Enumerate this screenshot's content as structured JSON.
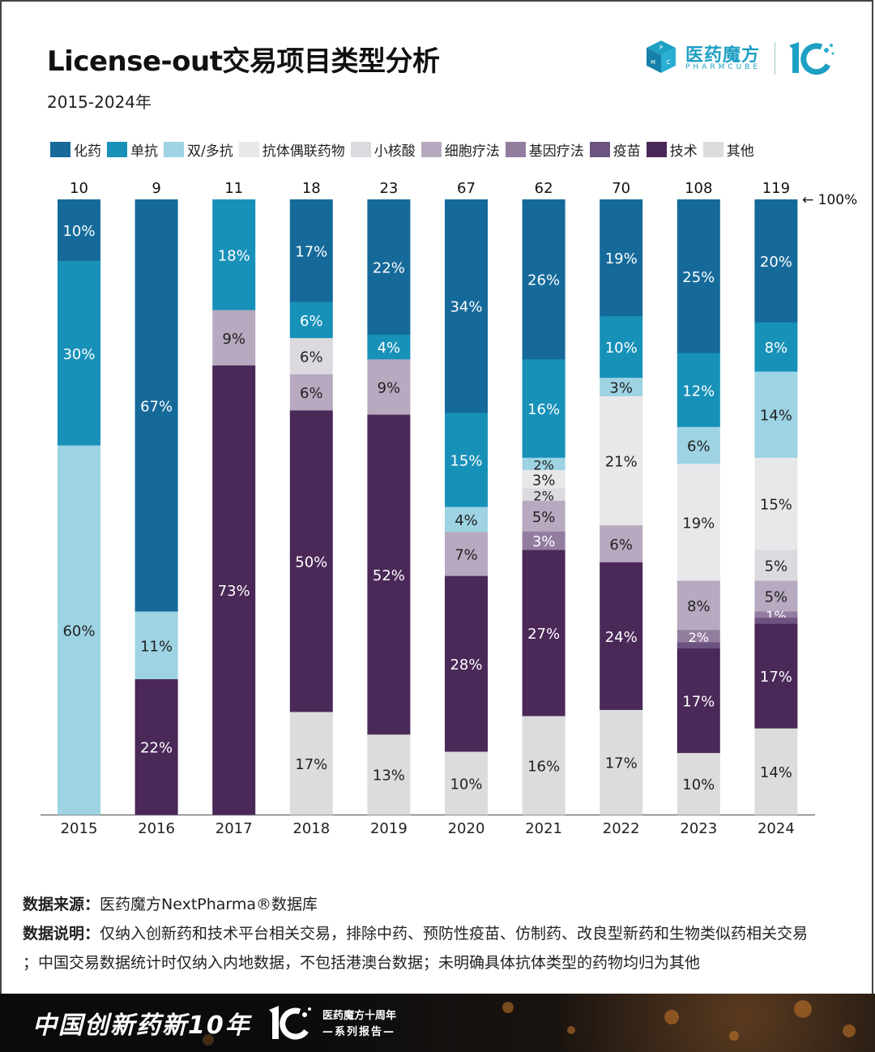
{
  "header": {
    "title": "License-out交易项目类型分析",
    "subtitle": "2015-2024年",
    "logo_cn": "医药魔方",
    "logo_en": "PHARMCUBE",
    "logo_cube_letters": [
      "P",
      "M",
      "C"
    ]
  },
  "legend": [
    {
      "label": "化药",
      "color": "#156a9a"
    },
    {
      "label": "单抗",
      "color": "#1891b9"
    },
    {
      "label": "双/多抗",
      "color": "#9dd3e3"
    },
    {
      "label": "抗体偶联药物",
      "color": "#e8e8ea"
    },
    {
      "label": "小核酸",
      "color": "#dcd9df"
    },
    {
      "label": "细胞疗法",
      "color": "#b7a9bf"
    },
    {
      "label": "基因疗法",
      "color": "#937d9f"
    },
    {
      "label": "疫苗",
      "color": "#6d5480"
    },
    {
      "label": "技术",
      "color": "#4a2858"
    },
    {
      "label": "其他",
      "color": "#dcdcdc"
    }
  ],
  "chart_data": {
    "type": "bar",
    "stacked": true,
    "normalized": true,
    "title": "License-out交易项目类型分析",
    "subtitle": "2015-2024年",
    "xlabel": "",
    "ylabel": "",
    "ylim": [
      0,
      100
    ],
    "top_annotation": "← 100%",
    "categories": [
      "2015",
      "2016",
      "2017",
      "2018",
      "2019",
      "2020",
      "2021",
      "2022",
      "2023",
      "2024"
    ],
    "totals": [
      10,
      9,
      11,
      18,
      23,
      67,
      62,
      70,
      108,
      119
    ],
    "series": [
      {
        "name": "化药",
        "values": [
          10,
          67,
          0,
          17,
          22,
          34,
          26,
          19,
          25,
          20
        ]
      },
      {
        "name": "单抗",
        "values": [
          30,
          0,
          18,
          6,
          4,
          15,
          16,
          10,
          12,
          8
        ]
      },
      {
        "name": "双/多抗",
        "values": [
          60,
          11,
          0,
          0,
          0,
          4,
          2,
          3,
          6,
          14
        ]
      },
      {
        "name": "抗体偶联药物",
        "values": [
          0,
          0,
          0,
          0,
          0,
          0,
          3,
          21,
          19,
          15
        ]
      },
      {
        "name": "小核酸",
        "values": [
          0,
          0,
          0,
          6,
          0,
          0,
          2,
          0,
          0,
          5
        ]
      },
      {
        "name": "细胞疗法",
        "values": [
          0,
          0,
          9,
          6,
          9,
          7,
          5,
          6,
          8,
          5
        ]
      },
      {
        "name": "基因疗法",
        "values": [
          0,
          0,
          0,
          0,
          0,
          0,
          3,
          0,
          2,
          1
        ]
      },
      {
        "name": "疫苗",
        "values": [
          0,
          0,
          0,
          0,
          0,
          0,
          0,
          0,
          1,
          1
        ]
      },
      {
        "name": "技术",
        "values": [
          0,
          22,
          73,
          50,
          52,
          28,
          27,
          24,
          17,
          17
        ]
      },
      {
        "name": "其他",
        "values": [
          0,
          0,
          0,
          17,
          13,
          10,
          16,
          17,
          10,
          14
        ]
      }
    ],
    "hidden_labels": [
      [
        8,
        7
      ],
      [
        9,
        7
      ]
    ],
    "grid": false,
    "legend_position": "top"
  },
  "notes": {
    "source_label": "数据来源：",
    "source_text": "医药魔方NextPharma®数据库",
    "desc_label": "数据说明：",
    "desc_text_1": "仅纳入创新药和技术平台相关交易，排除中药、预防性疫苗、仿制药、改良型新药和生物类似药相关交易",
    "desc_text_2": "；中国交易数据统计时仅纳入内地数据，不包括港澳台数据；未明确具体抗体类型的药物均归为其他"
  },
  "footer": {
    "slogan": "中国创新药新10年",
    "series_line_1": "医药魔方十周年",
    "series_line_2": "—系列报告—"
  }
}
